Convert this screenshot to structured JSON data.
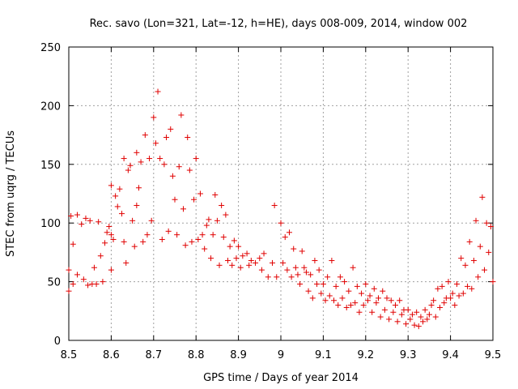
{
  "chart_data": {
    "type": "scatter",
    "title": "Rec. savo (Lon=321, Lat=-12, h=HE), days 008-009, 2014, window 002",
    "xlabel": "GPS time / Days of year 2014",
    "ylabel": "STEC from uqrg / TECUs",
    "xlim": [
      8.5,
      9.5
    ],
    "ylim": [
      0,
      250
    ],
    "xticks": [
      "8.5",
      "8.6",
      "8.7",
      "8.8",
      "8.9",
      "9",
      "9.1",
      "9.2",
      "9.3",
      "9.4",
      "9.5"
    ],
    "yticks": [
      "0",
      "50",
      "100",
      "150",
      "200",
      "250"
    ],
    "grid": true,
    "marker": "+",
    "color": "#e00000",
    "series": [
      {
        "name": "STEC",
        "points": [
          [
            8.5,
            60
          ],
          [
            8.5,
            42
          ],
          [
            8.505,
            106
          ],
          [
            8.51,
            82
          ],
          [
            8.51,
            48
          ],
          [
            8.52,
            107
          ],
          [
            8.52,
            56
          ],
          [
            8.53,
            99
          ],
          [
            8.535,
            52
          ],
          [
            8.54,
            104
          ],
          [
            8.545,
            47
          ],
          [
            8.55,
            102
          ],
          [
            8.555,
            48
          ],
          [
            8.56,
            62
          ],
          [
            8.565,
            48
          ],
          [
            8.57,
            101
          ],
          [
            8.575,
            72
          ],
          [
            8.58,
            50
          ],
          [
            8.585,
            83
          ],
          [
            8.59,
            92
          ],
          [
            8.595,
            97
          ],
          [
            8.6,
            132
          ],
          [
            8.6,
            90
          ],
          [
            8.6,
            60
          ],
          [
            8.605,
            86
          ],
          [
            8.61,
            123
          ],
          [
            8.615,
            114
          ],
          [
            8.62,
            129
          ],
          [
            8.625,
            108
          ],
          [
            8.63,
            155
          ],
          [
            8.63,
            84
          ],
          [
            8.635,
            66
          ],
          [
            8.64,
            145
          ],
          [
            8.645,
            149
          ],
          [
            8.65,
            102
          ],
          [
            8.655,
            80
          ],
          [
            8.66,
            160
          ],
          [
            8.66,
            115
          ],
          [
            8.665,
            130
          ],
          [
            8.67,
            152
          ],
          [
            8.675,
            84
          ],
          [
            8.68,
            175
          ],
          [
            8.685,
            90
          ],
          [
            8.69,
            155
          ],
          [
            8.695,
            102
          ],
          [
            8.7,
            190
          ],
          [
            8.705,
            168
          ],
          [
            8.71,
            212
          ],
          [
            8.715,
            155
          ],
          [
            8.72,
            86
          ],
          [
            8.725,
            150
          ],
          [
            8.73,
            173
          ],
          [
            8.735,
            93
          ],
          [
            8.74,
            180
          ],
          [
            8.745,
            140
          ],
          [
            8.75,
            120
          ],
          [
            8.755,
            90
          ],
          [
            8.76,
            148
          ],
          [
            8.765,
            192
          ],
          [
            8.77,
            112
          ],
          [
            8.775,
            81
          ],
          [
            8.78,
            173
          ],
          [
            8.785,
            145
          ],
          [
            8.79,
            84
          ],
          [
            8.795,
            120
          ],
          [
            8.8,
            155
          ],
          [
            8.805,
            86
          ],
          [
            8.81,
            125
          ],
          [
            8.815,
            90
          ],
          [
            8.82,
            78
          ],
          [
            8.825,
            98
          ],
          [
            8.83,
            103
          ],
          [
            8.835,
            70
          ],
          [
            8.84,
            90
          ],
          [
            8.845,
            124
          ],
          [
            8.85,
            102
          ],
          [
            8.855,
            64
          ],
          [
            8.86,
            115
          ],
          [
            8.865,
            88
          ],
          [
            8.87,
            107
          ],
          [
            8.875,
            68
          ],
          [
            8.88,
            80
          ],
          [
            8.885,
            64
          ],
          [
            8.89,
            85
          ],
          [
            8.895,
            70
          ],
          [
            8.9,
            80
          ],
          [
            8.905,
            62
          ],
          [
            8.91,
            72
          ],
          [
            8.92,
            74
          ],
          [
            8.925,
            64
          ],
          [
            8.93,
            68
          ],
          [
            8.94,
            66
          ],
          [
            8.95,
            70
          ],
          [
            8.955,
            60
          ],
          [
            8.96,
            74
          ],
          [
            8.97,
            54
          ],
          [
            8.98,
            66
          ],
          [
            8.985,
            115
          ],
          [
            8.99,
            54
          ],
          [
            9.0,
            100
          ],
          [
            9.005,
            66
          ],
          [
            9.01,
            88
          ],
          [
            9.015,
            60
          ],
          [
            9.02,
            92
          ],
          [
            9.025,
            54
          ],
          [
            9.03,
            78
          ],
          [
            9.035,
            62
          ],
          [
            9.04,
            56
          ],
          [
            9.045,
            48
          ],
          [
            9.05,
            76
          ],
          [
            9.055,
            62
          ],
          [
            9.06,
            58
          ],
          [
            9.065,
            42
          ],
          [
            9.07,
            56
          ],
          [
            9.075,
            36
          ],
          [
            9.08,
            68
          ],
          [
            9.085,
            48
          ],
          [
            9.09,
            60
          ],
          [
            9.095,
            40
          ],
          [
            9.1,
            48
          ],
          [
            9.105,
            34
          ],
          [
            9.11,
            54
          ],
          [
            9.115,
            38
          ],
          [
            9.12,
            68
          ],
          [
            9.125,
            34
          ],
          [
            9.13,
            46
          ],
          [
            9.135,
            30
          ],
          [
            9.14,
            54
          ],
          [
            9.145,
            36
          ],
          [
            9.15,
            50
          ],
          [
            9.155,
            28
          ],
          [
            9.16,
            42
          ],
          [
            9.165,
            30
          ],
          [
            9.17,
            62
          ],
          [
            9.175,
            32
          ],
          [
            9.18,
            46
          ],
          [
            9.185,
            24
          ],
          [
            9.19,
            40
          ],
          [
            9.195,
            30
          ],
          [
            9.2,
            48
          ],
          [
            9.205,
            34
          ],
          [
            9.21,
            38
          ],
          [
            9.215,
            24
          ],
          [
            9.22,
            44
          ],
          [
            9.225,
            32
          ],
          [
            9.23,
            36
          ],
          [
            9.235,
            20
          ],
          [
            9.24,
            42
          ],
          [
            9.245,
            26
          ],
          [
            9.25,
            36
          ],
          [
            9.255,
            18
          ],
          [
            9.26,
            34
          ],
          [
            9.265,
            24
          ],
          [
            9.27,
            30
          ],
          [
            9.275,
            16
          ],
          [
            9.28,
            34
          ],
          [
            9.285,
            22
          ],
          [
            9.29,
            26
          ],
          [
            9.295,
            14
          ],
          [
            9.3,
            26
          ],
          [
            9.305,
            18
          ],
          [
            9.31,
            22
          ],
          [
            9.315,
            13
          ],
          [
            9.32,
            24
          ],
          [
            9.325,
            12
          ],
          [
            9.33,
            20
          ],
          [
            9.335,
            16
          ],
          [
            9.34,
            26
          ],
          [
            9.345,
            18
          ],
          [
            9.35,
            22
          ],
          [
            9.355,
            30
          ],
          [
            9.36,
            34
          ],
          [
            9.365,
            20
          ],
          [
            9.37,
            44
          ],
          [
            9.375,
            28
          ],
          [
            9.38,
            46
          ],
          [
            9.385,
            32
          ],
          [
            9.39,
            36
          ],
          [
            9.395,
            50
          ],
          [
            9.4,
            36
          ],
          [
            9.405,
            40
          ],
          [
            9.41,
            30
          ],
          [
            9.415,
            48
          ],
          [
            9.42,
            38
          ],
          [
            9.425,
            70
          ],
          [
            9.43,
            40
          ],
          [
            9.435,
            64
          ],
          [
            9.44,
            46
          ],
          [
            9.445,
            84
          ],
          [
            9.45,
            44
          ],
          [
            9.455,
            68
          ],
          [
            9.46,
            102
          ],
          [
            9.465,
            54
          ],
          [
            9.47,
            80
          ],
          [
            9.475,
            122
          ],
          [
            9.48,
            60
          ],
          [
            9.485,
            100
          ],
          [
            9.49,
            75
          ],
          [
            9.495,
            97
          ],
          [
            9.5,
            50
          ]
        ]
      }
    ]
  }
}
